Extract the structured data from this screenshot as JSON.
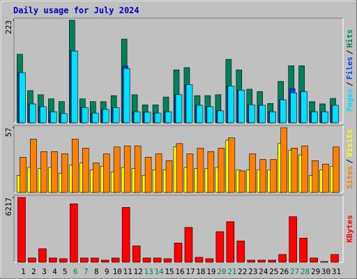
{
  "chart_data": [
    {
      "type": "bar",
      "title": "Daily usage for July 2024",
      "ylim": [
        0,
        223
      ],
      "yticks": [
        223
      ],
      "legend_separator": "/",
      "series": [
        {
          "name": "Pages",
          "color": "#00e0ff",
          "values": [
            109,
            41,
            35,
            24,
            20,
            156,
            33,
            21,
            29,
            33,
            118,
            24,
            23,
            21,
            24,
            61,
            83,
            38,
            35,
            26,
            80,
            71,
            39,
            38,
            24,
            50,
            65,
            68,
            24,
            24,
            38
          ]
        },
        {
          "name": "Files",
          "color": "#0040ff",
          "values": [
            109,
            41,
            35,
            24,
            20,
            156,
            33,
            21,
            29,
            33,
            123,
            24,
            23,
            21,
            24,
            61,
            83,
            38,
            35,
            26,
            80,
            71,
            39,
            38,
            24,
            50,
            74,
            68,
            24,
            24,
            38
          ]
        },
        {
          "name": "Hits",
          "color": "#00805c",
          "values": [
            149,
            70,
            61,
            52,
            46,
            223,
            52,
            46,
            46,
            59,
            182,
            61,
            39,
            39,
            56,
            115,
            120,
            59,
            59,
            61,
            138,
            115,
            73,
            68,
            42,
            90,
            124,
            124,
            46,
            41,
            53
          ]
        }
      ]
    },
    {
      "type": "bar",
      "ylim": [
        0,
        57
      ],
      "yticks": [
        57
      ],
      "legend_separator": "/",
      "series": [
        {
          "name": "Sites",
          "color": "#ff8000",
          "values": [
            31,
            47,
            36,
            36,
            34,
            47,
            39,
            26,
            34,
            40,
            41,
            41,
            31,
            34,
            28,
            43,
            34,
            39,
            36,
            39,
            48,
            19,
            34,
            29,
            29,
            57,
            39,
            41,
            28,
            25,
            40
          ]
        },
        {
          "name": "Visits",
          "color": "#ffff00",
          "values": [
            15,
            22,
            21,
            22,
            17,
            24,
            26,
            20,
            23,
            18,
            22,
            21,
            15,
            20,
            20,
            40,
            22,
            21,
            21,
            22,
            46,
            20,
            20,
            20,
            20,
            43,
            37,
            33,
            15,
            20,
            23
          ]
        }
      ]
    },
    {
      "type": "bar",
      "ylim": [
        0,
        6217
      ],
      "yticks": [
        6217
      ],
      "categories": [
        "1",
        "2",
        "3",
        "4",
        "5",
        "6",
        "7",
        "8",
        "9",
        "10",
        "11",
        "12",
        "13",
        "14",
        "15",
        "16",
        "17",
        "18",
        "19",
        "20",
        "21",
        "22",
        "23",
        "24",
        "25",
        "26",
        "27",
        "28",
        "29",
        "30",
        "31"
      ],
      "category_colors": [
        "#000000",
        "#000000",
        "#000000",
        "#000000",
        "#000000",
        "#00805c",
        "#00805c",
        "#000000",
        "#000000",
        "#000000",
        "#000000",
        "#000000",
        "#00805c",
        "#00805c",
        "#000000",
        "#000000",
        "#000000",
        "#000000",
        "#000000",
        "#00805c",
        "#00805c",
        "#000000",
        "#000000",
        "#000000",
        "#000000",
        "#000000",
        "#00805c",
        "#00805c",
        "#000000",
        "#000000",
        "#000000"
      ],
      "series": [
        {
          "name": "KBytes",
          "color": "#ff0000",
          "values": [
            6217,
            410,
            1298,
            410,
            342,
            5602,
            410,
            410,
            205,
            410,
            5260,
            1571,
            410,
            410,
            342,
            1844,
            3347,
            478,
            342,
            2937,
            3893,
            2049,
            205,
            205,
            205,
            751,
            4371,
            2322,
            410,
            68,
            751
          ]
        }
      ]
    }
  ]
}
